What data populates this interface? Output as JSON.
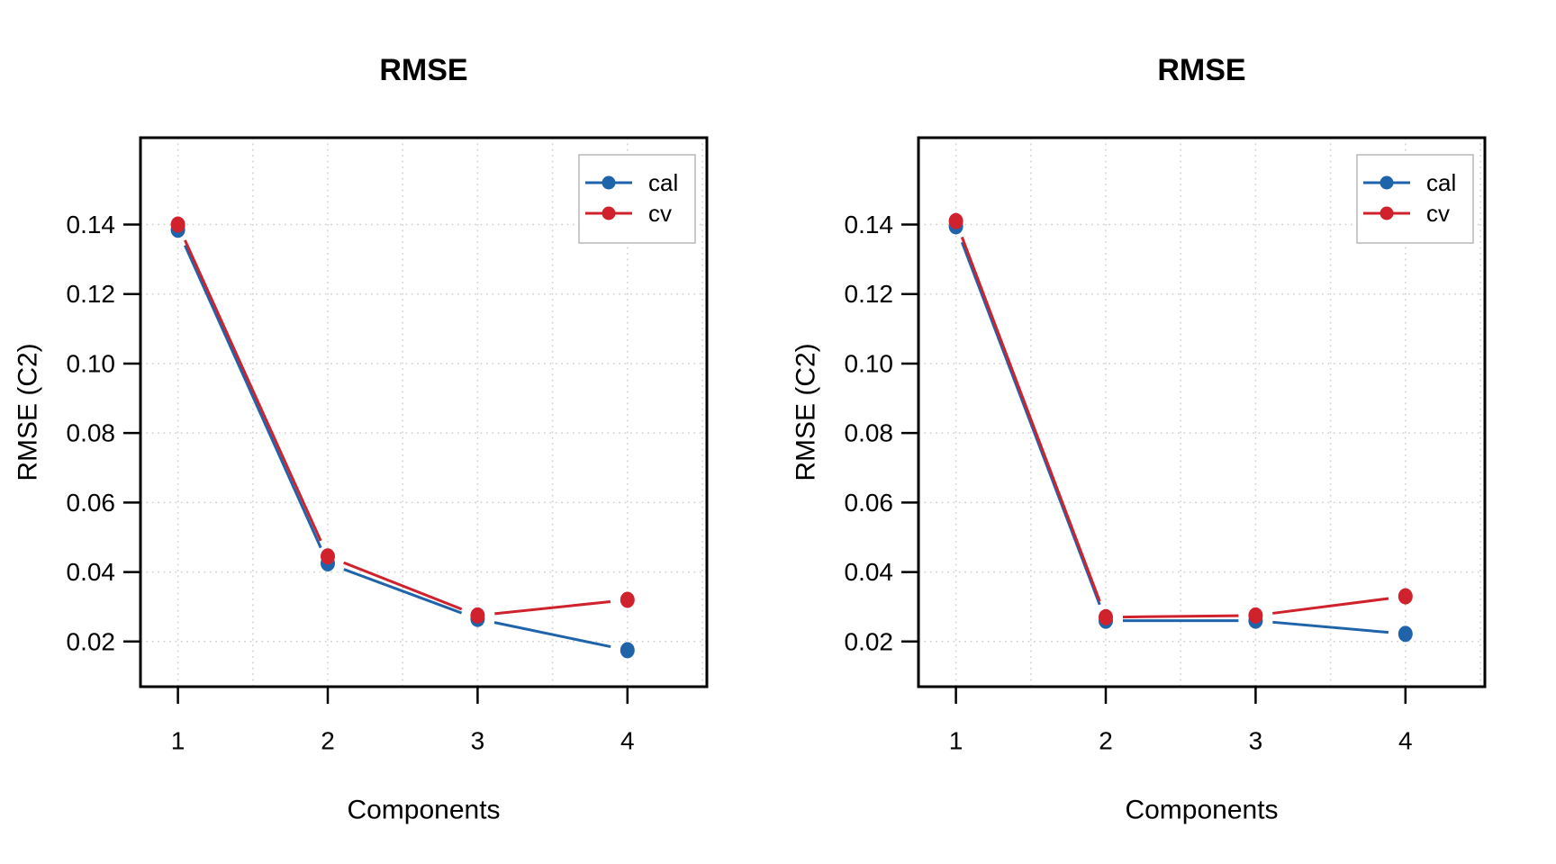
{
  "figure": {
    "background": "#ffffff",
    "axis_color": "#000000",
    "grid_color": "#d2d2d2",
    "legend_border_color": "#b9b9b9",
    "text_color": "#000000"
  },
  "chart_data": [
    {
      "type": "line",
      "title": "RMSE",
      "xlabel": "Components",
      "ylabel": "RMSE (C2)",
      "x": [
        1,
        2,
        3,
        4
      ],
      "series": [
        {
          "name": "cal",
          "color": "#1f64ab",
          "values": [
            0.1385,
            0.0425,
            0.0265,
            0.0175
          ]
        },
        {
          "name": "cv",
          "color": "#cf222c",
          "values": [
            0.14,
            0.0445,
            0.0275,
            0.032
          ]
        }
      ],
      "x_ticks": [
        1,
        2,
        3,
        4
      ],
      "y_ticks": [
        0.02,
        0.04,
        0.06,
        0.08,
        0.1,
        0.12,
        0.14
      ],
      "xlim": [
        0.75,
        4.53
      ],
      "ylim": [
        0.007,
        0.165
      ],
      "grid": {
        "shown": true,
        "style": "dotted",
        "x_step": 0.5,
        "x_start": 1.0,
        "x_end": 4.5
      },
      "legend": {
        "entries": [
          "cal",
          "cv"
        ],
        "position": "top-right"
      }
    },
    {
      "type": "line",
      "title": "RMSE",
      "xlabel": "Components",
      "ylabel": "RMSE (C2)",
      "x": [
        1,
        2,
        3,
        4
      ],
      "series": [
        {
          "name": "cal",
          "color": "#1f64ab",
          "values": [
            0.1395,
            0.026,
            0.026,
            0.0222
          ]
        },
        {
          "name": "cv",
          "color": "#cf222c",
          "values": [
            0.141,
            0.027,
            0.0275,
            0.033
          ]
        }
      ],
      "x_ticks": [
        1,
        2,
        3,
        4
      ],
      "y_ticks": [
        0.02,
        0.04,
        0.06,
        0.08,
        0.1,
        0.12,
        0.14
      ],
      "xlim": [
        0.75,
        4.53
      ],
      "ylim": [
        0.007,
        0.165
      ],
      "grid": {
        "shown": true,
        "style": "dotted",
        "x_step": 0.5,
        "x_start": 1.0,
        "x_end": 4.5
      },
      "legend": {
        "entries": [
          "cal",
          "cv"
        ],
        "position": "top-right"
      }
    }
  ]
}
